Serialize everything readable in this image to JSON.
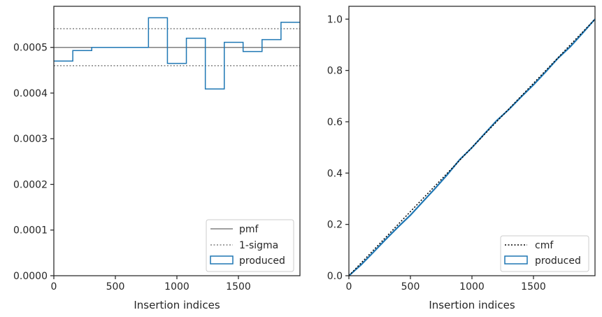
{
  "colors": {
    "produced": "#1f77b4",
    "pmf": "#808080",
    "sigma": "#808080",
    "cmf": "#000000",
    "axes": "#262626"
  },
  "chart_data": [
    {
      "type": "line",
      "subtype": "step-histogram",
      "xlabel": "Insertion indices",
      "ylabel": "",
      "xlim": [
        0,
        2000
      ],
      "ylim": [
        0,
        0.00059
      ],
      "xticks": [
        "0",
        "500",
        "1000",
        "1500"
      ],
      "xtick_values": [
        0,
        500,
        1000,
        1500
      ],
      "yticks": [
        "0.0000",
        "0.0001",
        "0.0002",
        "0.0003",
        "0.0004",
        "0.0005"
      ],
      "ytick_values": [
        0,
        0.0001,
        0.0002,
        0.0003,
        0.0004,
        0.0005
      ],
      "legend_position": "lower right",
      "legend": [
        {
          "key": "pmf",
          "label": "pmf",
          "style": "solid"
        },
        {
          "key": "sigma",
          "label": "1-sigma",
          "style": "dotted"
        },
        {
          "key": "produced",
          "label": "produced",
          "style": "patch"
        }
      ],
      "pmf": 0.0005,
      "sigma_band": [
        0.00046,
        0.000541
      ],
      "bin_edges": [
        0,
        154,
        308,
        462,
        615,
        769,
        923,
        1077,
        1231,
        1385,
        1538,
        1692,
        1846,
        2000
      ],
      "values": [
        0.00047,
        0.000493,
        0.0005,
        0.0005,
        0.0005,
        0.000565,
        0.000465,
        0.00052,
        0.000409,
        0.000511,
        0.000491,
        0.000517,
        0.000555
      ]
    },
    {
      "type": "line",
      "xlabel": "Insertion indices",
      "ylabel": "",
      "xlim": [
        0,
        2000
      ],
      "ylim": [
        0,
        1.05
      ],
      "xticks": [
        "0",
        "500",
        "1000",
        "1500"
      ],
      "xtick_values": [
        0,
        500,
        1000,
        1500
      ],
      "yticks": [
        "0.0",
        "0.2",
        "0.4",
        "0.6",
        "0.8",
        "1.0"
      ],
      "ytick_values": [
        0,
        0.2,
        0.4,
        0.6,
        0.8,
        1.0
      ],
      "legend_position": "lower right",
      "legend": [
        {
          "key": "cmf",
          "label": "cmf",
          "style": "dotted"
        },
        {
          "key": "produced",
          "label": "produced",
          "style": "patch"
        }
      ],
      "cmf": {
        "x": [
          0,
          2000
        ],
        "y": [
          0,
          1.0
        ]
      },
      "produced": {
        "x": [
          0,
          100,
          200,
          300,
          400,
          500,
          600,
          700,
          800,
          900,
          1000,
          1100,
          1200,
          1300,
          1400,
          1500,
          1600,
          1700,
          1800,
          1900,
          2000
        ],
        "y": [
          0,
          0.043,
          0.092,
          0.142,
          0.19,
          0.236,
          0.288,
          0.34,
          0.394,
          0.452,
          0.499,
          0.552,
          0.604,
          0.648,
          0.697,
          0.744,
          0.795,
          0.848,
          0.893,
          0.946,
          1.0
        ]
      }
    }
  ]
}
